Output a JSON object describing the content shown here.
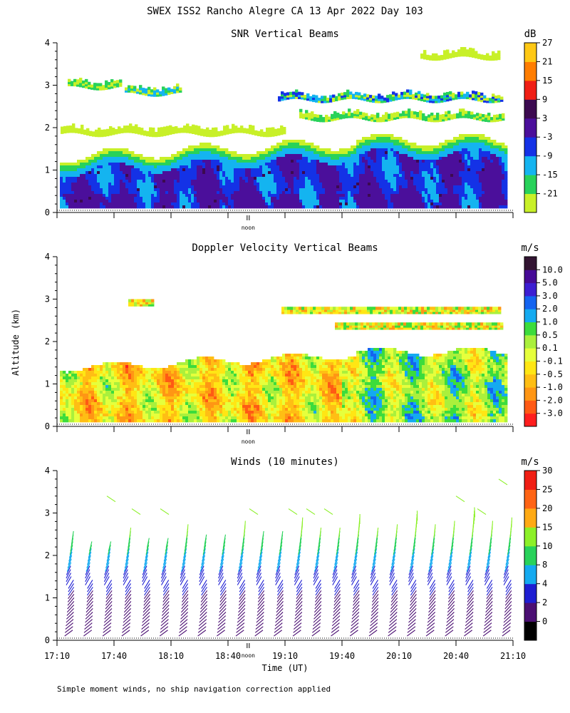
{
  "title": "SWEX ISS2 Rancho Alegre CA  13 Apr 2022 Day 103",
  "ylabel": "Altitude (km)",
  "xlabel": "Time (UT)",
  "footnote": "Simple moment winds, no ship navigation correction applied",
  "noon_label": "noon",
  "x_ticks": [
    "17:10",
    "17:40",
    "18:10",
    "18:40",
    "19:10",
    "19:40",
    "20:10",
    "20:40",
    "21:10"
  ],
  "y_ticks": [
    "0",
    "1",
    "2",
    "3",
    "4"
  ],
  "colors": {
    "snr": [
      "#c8f028",
      "#28d25a",
      "#14b4f0",
      "#1432e6",
      "#4b0f9b",
      "#3c0a50",
      "#f01e14",
      "#ff7d00",
      "#ffc814"
    ],
    "doppler": [
      "#ff1e1e",
      "#ff5a14",
      "#ff9614",
      "#ffbe14",
      "#ffe614",
      "#e6ff3c",
      "#aaf03c",
      "#3cdc3c",
      "#14aaf0",
      "#1464f0",
      "#3c1ed2",
      "#460a96",
      "#321432"
    ],
    "winds": [
      "#000000",
      "#4b0f73",
      "#1e1ed2",
      "#14aaf0",
      "#28d25a",
      "#8cf028",
      "#ffaa14",
      "#ff6414",
      "#f01e14"
    ]
  },
  "chart_data": [
    {
      "type": "heatmap",
      "title": "SNR Vertical Beams",
      "units": "dB",
      "x_range": [
        "17:10",
        "21:10"
      ],
      "ylim": [
        0,
        4
      ],
      "colorbar_labels": [
        "-21",
        "-15",
        "-9",
        "-3",
        "3",
        "9",
        "15",
        "21",
        "27"
      ]
    },
    {
      "type": "heatmap",
      "title": "Doppler Velocity Vertical Beams",
      "units": "m/s",
      "x_range": [
        "17:10",
        "21:10"
      ],
      "ylim": [
        0,
        4
      ],
      "colorbar_labels": [
        "-3.0",
        "-2.0",
        "-1.0",
        "-0.5",
        "-0.1",
        "0.1",
        "0.5",
        "1.0",
        "2.0",
        "3.0",
        "5.0",
        "10.0"
      ]
    },
    {
      "type": "scatter",
      "title": "Winds (10 minutes)",
      "units": "m/s",
      "x_range": [
        "17:10",
        "21:10"
      ],
      "ylim": [
        0,
        4
      ],
      "colorbar_labels": [
        "0",
        "2",
        "4",
        "8",
        "10",
        "15",
        "20",
        "25",
        "30"
      ]
    }
  ]
}
